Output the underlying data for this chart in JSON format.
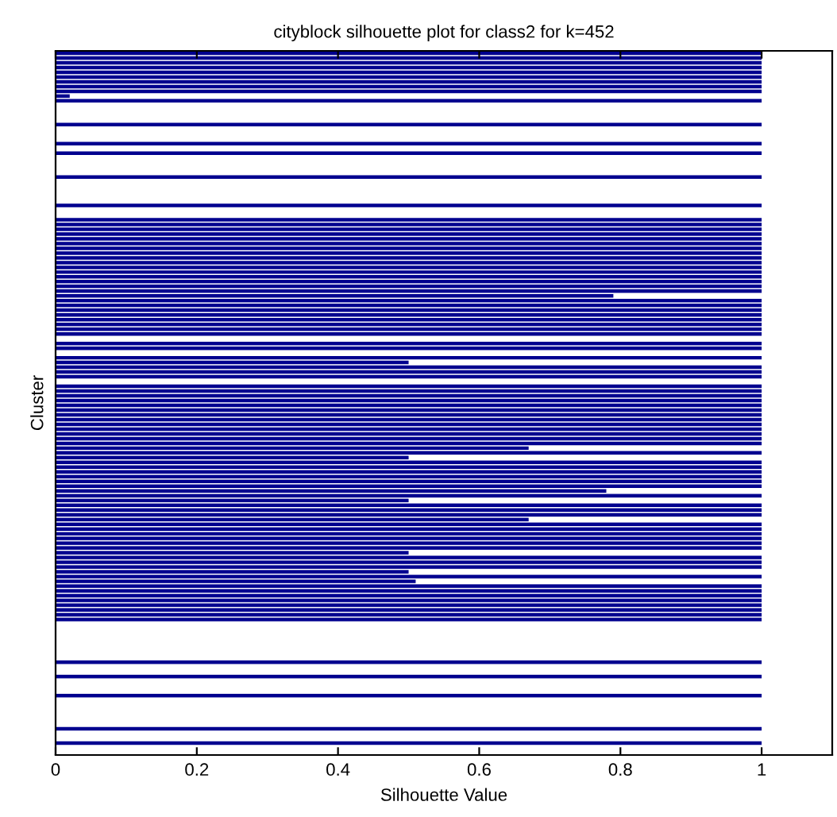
{
  "chart_data": {
    "type": "bar",
    "orientation": "horizontal",
    "title": "cityblock silhouette plot for class2 for k=452",
    "xlabel": "Silhouette Value",
    "ylabel": "Cluster",
    "categories": [
      null,
      null,
      null,
      null,
      null,
      null,
      null,
      null,
      null,
      null,
      null,
      null,
      null,
      null,
      null,
      null,
      null,
      null,
      null,
      null,
      null,
      null,
      null,
      null,
      null,
      null,
      null,
      null,
      null,
      null,
      null,
      null,
      null,
      null,
      null,
      null,
      null,
      null,
      null,
      null,
      null,
      null,
      null,
      null,
      null,
      null,
      null,
      null,
      null,
      null,
      null,
      null,
      null,
      null,
      null,
      null,
      null,
      null,
      null,
      null,
      null,
      null,
      null,
      null,
      null,
      null,
      null,
      null,
      null,
      null,
      null,
      null,
      null,
      null,
      null,
      null,
      null,
      null,
      null,
      null,
      null,
      null,
      null,
      null,
      null,
      null,
      null,
      null,
      null,
      null,
      null,
      null,
      null,
      null,
      null,
      null,
      null,
      null,
      null,
      null,
      null,
      null,
      null,
      null,
      null,
      null,
      null,
      null,
      null,
      null,
      null,
      null,
      null,
      null,
      null,
      null,
      null,
      null,
      null,
      null,
      null,
      null,
      null,
      null,
      null,
      null,
      null,
      null,
      null,
      null,
      null,
      null,
      null,
      null,
      null,
      null,
      null,
      null,
      null,
      null,
      null,
      null,
      null,
      null,
      null,
      null,
      null,
      null
    ],
    "values": [
      1,
      1,
      1,
      1,
      1,
      1,
      1,
      1,
      1,
      0.02,
      1,
      null,
      null,
      null,
      null,
      1,
      null,
      null,
      null,
      1,
      null,
      1,
      null,
      null,
      null,
      null,
      1,
      null,
      null,
      null,
      null,
      null,
      1,
      null,
      null,
      1,
      1,
      1,
      1,
      1,
      1,
      1,
      1,
      1,
      1,
      1,
      1,
      1,
      1,
      1,
      1,
      0.79,
      1,
      1,
      1,
      1,
      1,
      1,
      1,
      1,
      null,
      1,
      1,
      null,
      1,
      0.5,
      1,
      1,
      1,
      null,
      1,
      1,
      1,
      1,
      1,
      1,
      1,
      1,
      1,
      1,
      1,
      1,
      1,
      0.67,
      1,
      0.5,
      1,
      1,
      1,
      1,
      1,
      1,
      0.78,
      1,
      0.5,
      1,
      1,
      1,
      0.67,
      1,
      1,
      1,
      1,
      1,
      1,
      0.5,
      1,
      1,
      1,
      0.5,
      1,
      0.51,
      1,
      1,
      1,
      1,
      1,
      1,
      1,
      1,
      null,
      null,
      null,
      null,
      null,
      null,
      null,
      null,
      1,
      null,
      null,
      1,
      null,
      null,
      null,
      1,
      null,
      null,
      null,
      null,
      null,
      null,
      1,
      null,
      null,
      1,
      null,
      null
    ],
    "color": "#00008f",
    "xlim": [
      0,
      1.1
    ],
    "xticks": [
      0,
      0.2,
      0.4,
      0.6,
      0.8,
      1
    ],
    "tick_labels": "x"
  }
}
